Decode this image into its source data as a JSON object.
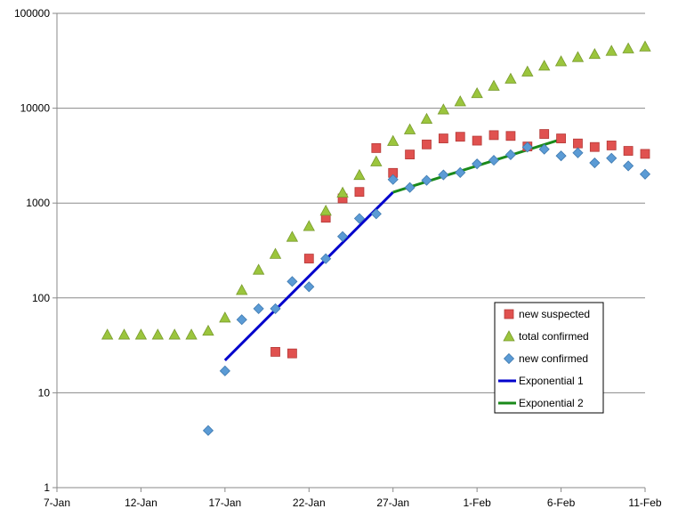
{
  "chart_data": {
    "type": "scatter",
    "title": "",
    "xlabel": "",
    "ylabel": "",
    "y_scale": "log",
    "ylim": [
      1,
      100000
    ],
    "xlim": [
      "2020-01-07",
      "2020-02-11"
    ],
    "x_ticks": [
      "7-Jan",
      "12-Jan",
      "17-Jan",
      "22-Jan",
      "27-Jan",
      "1-Feb",
      "6-Feb",
      "11-Feb"
    ],
    "y_ticks": [
      "1",
      "10",
      "100",
      "1000",
      "10000",
      "100000"
    ],
    "grid": "horizontal",
    "legend_position": "bottom-right",
    "series": [
      {
        "name": "new suspected",
        "marker": "square",
        "color": "#e0514f",
        "points": [
          {
            "x": "2020-01-20",
            "y": 27
          },
          {
            "x": "2020-01-21",
            "y": 26
          },
          {
            "x": "2020-01-22",
            "y": 260
          },
          {
            "x": "2020-01-23",
            "y": 700
          },
          {
            "x": "2020-01-24",
            "y": 1120
          },
          {
            "x": "2020-01-25",
            "y": 1310
          },
          {
            "x": "2020-01-26",
            "y": 3800
          },
          {
            "x": "2020-01-27",
            "y": 2080
          },
          {
            "x": "2020-01-28",
            "y": 3250
          },
          {
            "x": "2020-01-29",
            "y": 4150
          },
          {
            "x": "2020-01-30",
            "y": 4800
          },
          {
            "x": "2020-01-31",
            "y": 5000
          },
          {
            "x": "2020-02-01",
            "y": 4550
          },
          {
            "x": "2020-02-02",
            "y": 5200
          },
          {
            "x": "2020-02-03",
            "y": 5100
          },
          {
            "x": "2020-02-04",
            "y": 3950
          },
          {
            "x": "2020-02-05",
            "y": 5350
          },
          {
            "x": "2020-02-06",
            "y": 4800
          },
          {
            "x": "2020-02-07",
            "y": 4250
          },
          {
            "x": "2020-02-08",
            "y": 3900
          },
          {
            "x": "2020-02-09",
            "y": 4050
          },
          {
            "x": "2020-02-10",
            "y": 3550
          },
          {
            "x": "2020-02-11",
            "y": 3300
          }
        ]
      },
      {
        "name": "total confirmed",
        "marker": "triangle",
        "color": "#9bc53d",
        "points": [
          {
            "x": "2020-01-10",
            "y": 41
          },
          {
            "x": "2020-01-11",
            "y": 41
          },
          {
            "x": "2020-01-12",
            "y": 41
          },
          {
            "x": "2020-01-13",
            "y": 41
          },
          {
            "x": "2020-01-14",
            "y": 41
          },
          {
            "x": "2020-01-15",
            "y": 41
          },
          {
            "x": "2020-01-16",
            "y": 45
          },
          {
            "x": "2020-01-17",
            "y": 62
          },
          {
            "x": "2020-01-18",
            "y": 121
          },
          {
            "x": "2020-01-19",
            "y": 198
          },
          {
            "x": "2020-01-20",
            "y": 291
          },
          {
            "x": "2020-01-21",
            "y": 440
          },
          {
            "x": "2020-01-22",
            "y": 571
          },
          {
            "x": "2020-01-23",
            "y": 830
          },
          {
            "x": "2020-01-24",
            "y": 1287
          },
          {
            "x": "2020-01-25",
            "y": 1975
          },
          {
            "x": "2020-01-26",
            "y": 2744
          },
          {
            "x": "2020-01-27",
            "y": 4515
          },
          {
            "x": "2020-01-28",
            "y": 5974
          },
          {
            "x": "2020-01-29",
            "y": 7711
          },
          {
            "x": "2020-01-30",
            "y": 9692
          },
          {
            "x": "2020-01-31",
            "y": 11791
          },
          {
            "x": "2020-02-01",
            "y": 14380
          },
          {
            "x": "2020-02-02",
            "y": 17205
          },
          {
            "x": "2020-02-03",
            "y": 20438
          },
          {
            "x": "2020-02-04",
            "y": 24324
          },
          {
            "x": "2020-02-05",
            "y": 28018
          },
          {
            "x": "2020-02-06",
            "y": 31161
          },
          {
            "x": "2020-02-07",
            "y": 34546
          },
          {
            "x": "2020-02-08",
            "y": 37198
          },
          {
            "x": "2020-02-09",
            "y": 40171
          },
          {
            "x": "2020-02-10",
            "y": 42638
          },
          {
            "x": "2020-02-11",
            "y": 44653
          }
        ]
      },
      {
        "name": "new confirmed",
        "marker": "diamond",
        "color": "#5b9bd5",
        "points": [
          {
            "x": "2020-01-16",
            "y": 4
          },
          {
            "x": "2020-01-17",
            "y": 17
          },
          {
            "x": "2020-01-18",
            "y": 59
          },
          {
            "x": "2020-01-19",
            "y": 77
          },
          {
            "x": "2020-01-20",
            "y": 77
          },
          {
            "x": "2020-01-21",
            "y": 149
          },
          {
            "x": "2020-01-22",
            "y": 131
          },
          {
            "x": "2020-01-23",
            "y": 259
          },
          {
            "x": "2020-01-24",
            "y": 444
          },
          {
            "x": "2020-01-25",
            "y": 688
          },
          {
            "x": "2020-01-26",
            "y": 769
          },
          {
            "x": "2020-01-27",
            "y": 1771
          },
          {
            "x": "2020-01-28",
            "y": 1459
          },
          {
            "x": "2020-01-29",
            "y": 1737
          },
          {
            "x": "2020-01-30",
            "y": 1981
          },
          {
            "x": "2020-01-31",
            "y": 2099
          },
          {
            "x": "2020-02-01",
            "y": 2589
          },
          {
            "x": "2020-02-02",
            "y": 2825
          },
          {
            "x": "2020-02-03",
            "y": 3233
          },
          {
            "x": "2020-02-04",
            "y": 3886
          },
          {
            "x": "2020-02-05",
            "y": 3694
          },
          {
            "x": "2020-02-06",
            "y": 3143
          },
          {
            "x": "2020-02-07",
            "y": 3385
          },
          {
            "x": "2020-02-08",
            "y": 2652
          },
          {
            "x": "2020-02-09",
            "y": 2973
          },
          {
            "x": "2020-02-10",
            "y": 2467
          },
          {
            "x": "2020-02-11",
            "y": 2015
          }
        ]
      },
      {
        "name": "Exponential 1",
        "marker": "line",
        "color": "#0000cc",
        "points": [
          {
            "x": "2020-01-17",
            "y": 22
          },
          {
            "x": "2020-01-27",
            "y": 1300
          }
        ]
      },
      {
        "name": "Exponential 2",
        "marker": "line",
        "color": "#1a8a1a",
        "points": [
          {
            "x": "2020-01-27",
            "y": 1300
          },
          {
            "x": "2020-02-06",
            "y": 4700
          }
        ]
      }
    ]
  }
}
